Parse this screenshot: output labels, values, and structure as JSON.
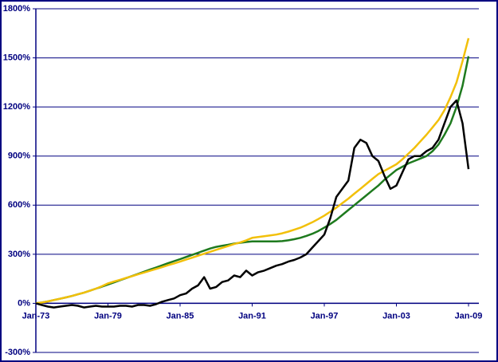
{
  "chart_data": {
    "type": "line",
    "categories": [
      "Jan-73",
      null,
      null,
      null,
      null,
      null,
      null,
      null,
      null,
      null,
      null,
      null,
      "Jan-79",
      null,
      null,
      null,
      null,
      null,
      null,
      null,
      null,
      null,
      null,
      null,
      "Jan-85",
      null,
      null,
      null,
      null,
      null,
      null,
      null,
      null,
      null,
      null,
      null,
      "Jan-91",
      null,
      null,
      null,
      null,
      null,
      null,
      null,
      null,
      null,
      null,
      null,
      "Jan-97",
      null,
      null,
      null,
      null,
      null,
      null,
      null,
      null,
      null,
      null,
      null,
      "Jan-03",
      null,
      null,
      null,
      null,
      null,
      null,
      null,
      null,
      null,
      null,
      null,
      "Jan-09"
    ],
    "series": [
      {
        "color": "#1e7a1e",
        "values": [
          0,
          5,
          12,
          20,
          28,
          36,
          45,
          55,
          65,
          77,
          90,
          102,
          115,
          128,
          141,
          154,
          167,
          180,
          193,
          206,
          219,
          232,
          245,
          258,
          270,
          283,
          296,
          309,
          322,
          335,
          345,
          352,
          358,
          365,
          370,
          375,
          378,
          378,
          378,
          378,
          378,
          380,
          385,
          392,
          400,
          412,
          425,
          442,
          463,
          485,
          510,
          540,
          570,
          600,
          630,
          660,
          690,
          720,
          755,
          785,
          815,
          835,
          855,
          870,
          885,
          900,
          930,
          970,
          1030,
          1100,
          1200,
          1330,
          1510
        ]
      },
      {
        "color": "#f2c00a",
        "values": [
          0,
          5,
          12,
          20,
          28,
          36,
          45,
          55,
          65,
          77,
          90,
          105,
          122,
          133,
          144,
          155,
          166,
          177,
          188,
          199,
          210,
          221,
          233,
          244,
          255,
          267,
          279,
          291,
          303,
          315,
          327,
          339,
          350,
          362,
          372,
          385,
          400,
          405,
          410,
          415,
          420,
          428,
          438,
          450,
          462,
          478,
          495,
          515,
          536,
          560,
          585,
          612,
          640,
          670,
          700,
          730,
          760,
          790,
          810,
          830,
          850,
          880,
          915,
          950,
          990,
          1030,
          1075,
          1120,
          1180,
          1260,
          1350,
          1480,
          1620
        ]
      },
      {
        "color": "#000000",
        "values": [
          0,
          -10,
          -20,
          -25,
          -20,
          -15,
          -10,
          -15,
          -25,
          -20,
          -15,
          -20,
          -20,
          -20,
          -15,
          -15,
          -20,
          -10,
          -10,
          -15,
          -5,
          10,
          20,
          30,
          50,
          60,
          90,
          110,
          160,
          90,
          100,
          130,
          140,
          170,
          160,
          200,
          170,
          190,
          200,
          215,
          230,
          240,
          255,
          265,
          280,
          300,
          340,
          380,
          420,
          520,
          650,
          700,
          750,
          950,
          1000,
          980,
          900,
          870,
          780,
          700,
          720,
          800,
          880,
          900,
          900,
          930,
          950,
          1000,
          1100,
          1200,
          1240,
          1100,
          820
        ]
      }
    ],
    "ylim": [
      -300,
      1800
    ],
    "yticks": [
      {
        "value": -300,
        "label": "-300%"
      },
      {
        "value": 0,
        "label": "0%"
      },
      {
        "value": 300,
        "label": "300%"
      },
      {
        "value": 600,
        "label": "600%"
      },
      {
        "value": 900,
        "label": "900%"
      },
      {
        "value": 1200,
        "label": "1200%"
      },
      {
        "value": 1500,
        "label": "1500%"
      },
      {
        "value": 1800,
        "label": "1800%"
      }
    ],
    "grid": true
  }
}
